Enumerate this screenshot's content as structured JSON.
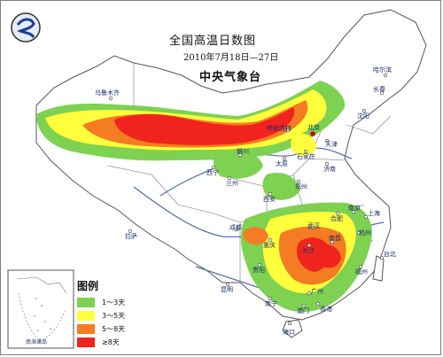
{
  "map": {
    "title": "全国高温日数图",
    "date_range": "2010年7月18日—27日",
    "agency": "中央气象台"
  },
  "legend": {
    "title": "图例",
    "items": [
      {
        "label": "1～3天",
        "color": "#7ed151"
      },
      {
        "label": "3～5天",
        "color": "#ffff3c"
      },
      {
        "label": "5～8天",
        "color": "#f47c22"
      },
      {
        "label": "≥8天",
        "color": "#f0231e"
      }
    ]
  },
  "cities": {
    "urumqi": "乌鲁木齐",
    "harbin": "哈尔滨",
    "changchun": "长春",
    "shenyang": "沈阳",
    "beijing": "北京",
    "tianjin": "天津",
    "hohhot": "呼和浩特",
    "shijiazhuang": "石家庄",
    "taiyuan": "太原",
    "jinan": "济南",
    "yinchuan": "银川",
    "xining": "西宁",
    "lanzhou": "兰州",
    "zhengzhou": "郑州",
    "xian": "西安",
    "lhasa": "拉萨",
    "hefei": "合肥",
    "nanjing": "南京",
    "shanghai": "上海",
    "hangzhou": "杭州",
    "wuhan": "武汉",
    "chengdu": "成都",
    "chongqing": "重庆",
    "changsha": "长沙",
    "nanchang": "南昌",
    "guiyang": "贵阳",
    "fuzhou": "福州",
    "taipei": "台北",
    "kunming": "昆明",
    "nanning": "南宁",
    "guangzhou": "广州",
    "hongkong": "香港",
    "macau": "澳门",
    "haikou": "海口"
  },
  "inset": {
    "label": "南海诸岛"
  }
}
